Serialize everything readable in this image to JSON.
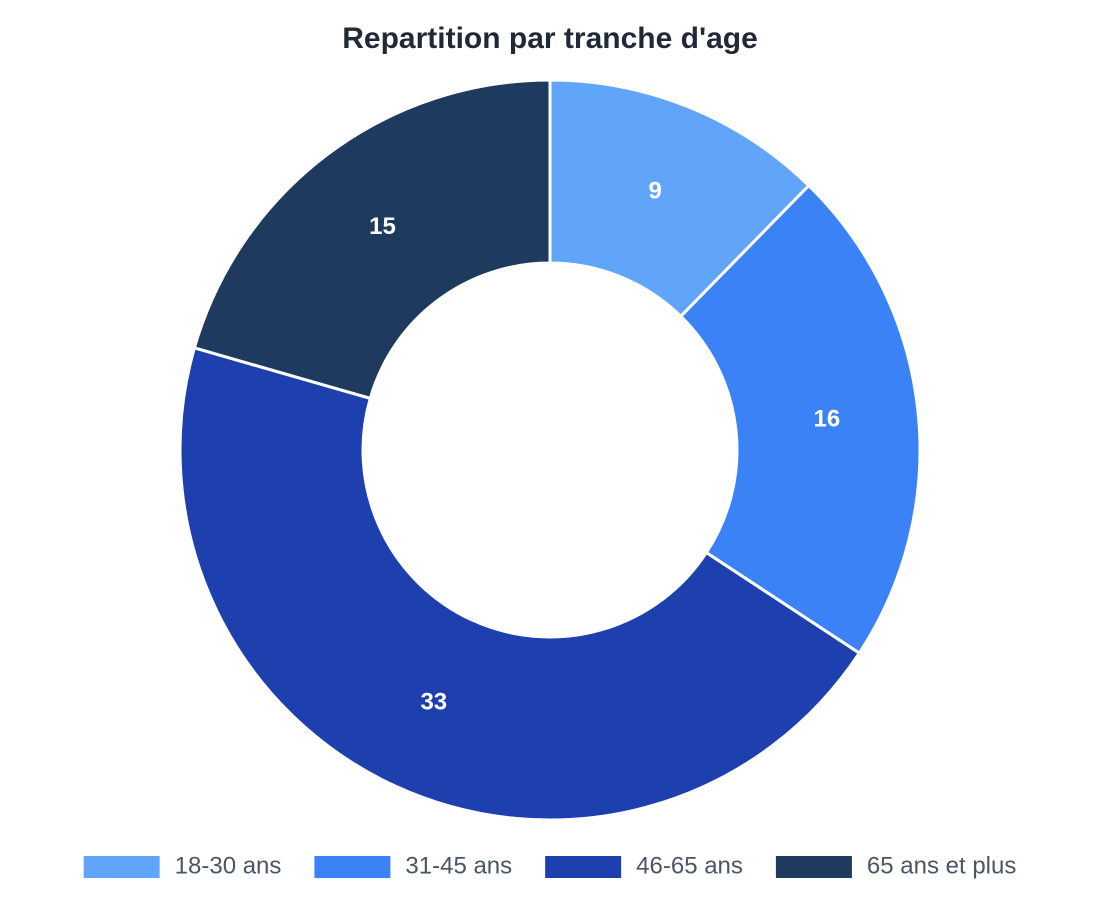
{
  "chart_data": {
    "type": "doughnut",
    "title": "Repartition par tranche d'age",
    "categories": [
      "18-30 ans",
      "31-45 ans",
      "46-65 ans",
      "65 ans et plus"
    ],
    "values": [
      9,
      16,
      33,
      15
    ],
    "colors": [
      "#60a5fa",
      "#3b82f6",
      "#1e40af",
      "#1e3a5f"
    ],
    "legend": "bottom"
  }
}
